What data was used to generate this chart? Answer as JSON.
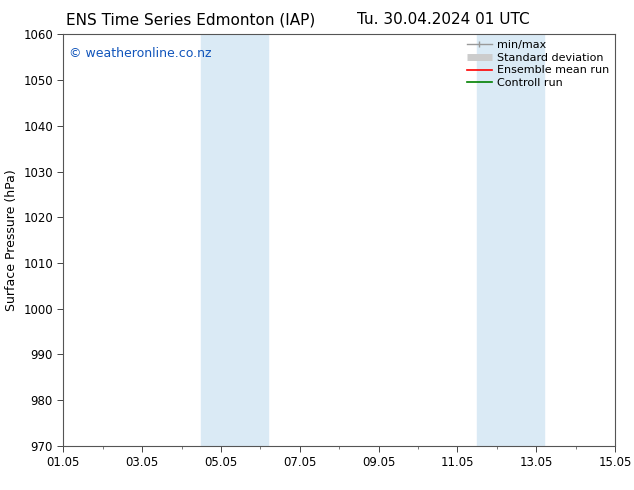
{
  "title_left": "ENS Time Series Edmonton (IAP)",
  "title_right": "Tu. 30.04.2024 01 UTC",
  "ylabel": "Surface Pressure (hPa)",
  "ylim": [
    970,
    1060
  ],
  "yticks": [
    970,
    980,
    990,
    1000,
    1010,
    1020,
    1030,
    1040,
    1050,
    1060
  ],
  "xlim_start": 0,
  "xlim_end": 14,
  "xtick_positions": [
    0,
    2,
    4,
    6,
    8,
    10,
    12,
    14
  ],
  "xtick_labels": [
    "01.05",
    "03.05",
    "05.05",
    "07.05",
    "09.05",
    "11.05",
    "13.05",
    "15.05"
  ],
  "shaded_bands": [
    {
      "x_start": 3.5,
      "x_end": 5.2
    },
    {
      "x_start": 10.5,
      "x_end": 12.2
    }
  ],
  "shaded_color": "#daeaf5",
  "watermark_text": "© weatheronline.co.nz",
  "watermark_color": "#1155bb",
  "background_color": "#ffffff",
  "axis_bg_color": "#ffffff",
  "legend_items": [
    {
      "label": "min/max",
      "color": "#999999",
      "lw": 1.0
    },
    {
      "label": "Standard deviation",
      "color": "#cccccc",
      "lw": 5
    },
    {
      "label": "Ensemble mean run",
      "color": "#ff0000",
      "lw": 1.2
    },
    {
      "label": "Controll run",
      "color": "#008000",
      "lw": 1.2
    }
  ],
  "title_fontsize": 11,
  "tick_fontsize": 8.5,
  "label_fontsize": 9,
  "watermark_fontsize": 9,
  "legend_fontsize": 8,
  "spine_color": "#555555"
}
